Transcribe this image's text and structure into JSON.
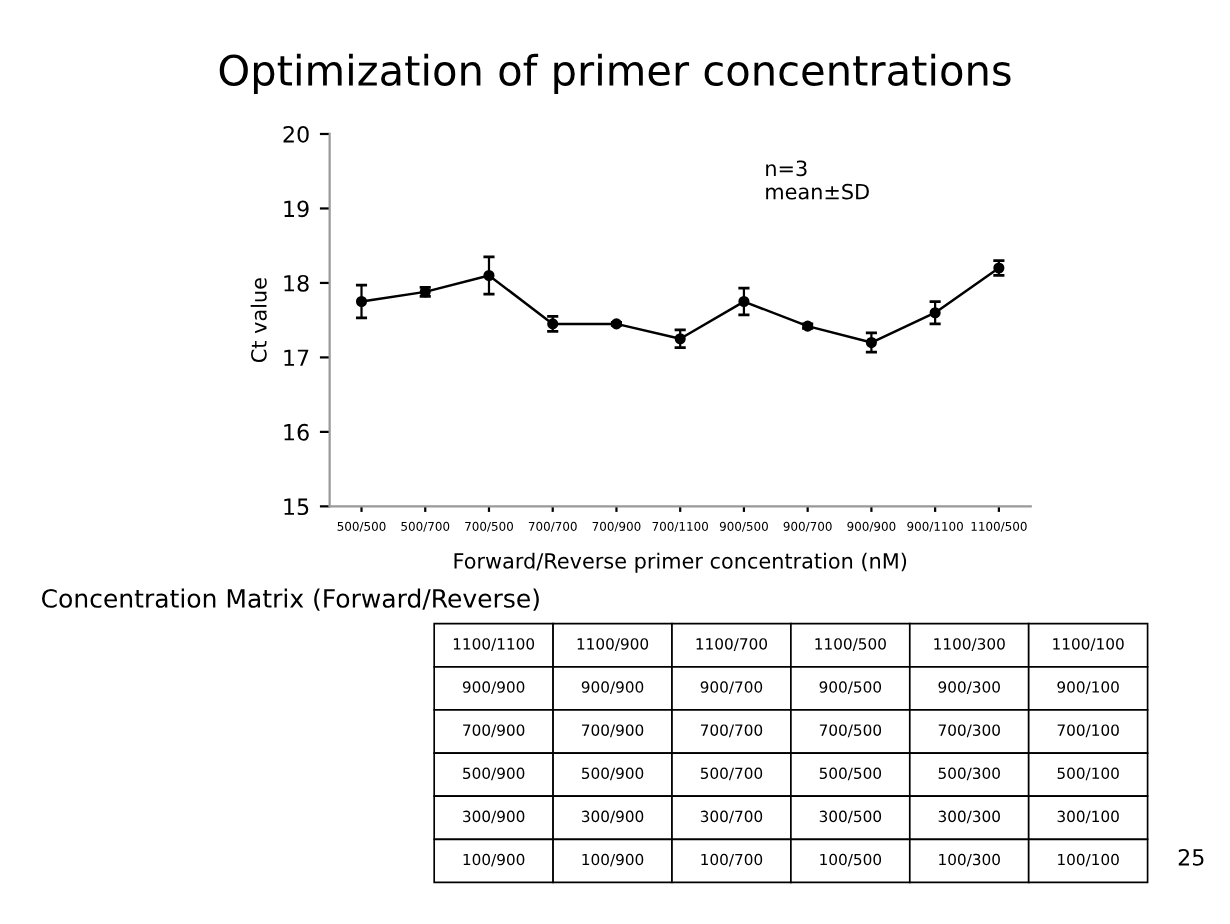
{
  "chart_data": {
    "type": "line",
    "title": "Optimization of primer concentrations",
    "xlabel": "Forward/Reverse primer concentration (nM)",
    "ylabel": "Ct value",
    "categories": [
      "500/500",
      "500/700",
      "700/500",
      "700/700",
      "700/900",
      "700/1100",
      "900/500",
      "900/700",
      "900/900",
      "900/1100",
      "1100/500"
    ],
    "series": [
      {
        "color": "#000000",
        "values": [
          17.75,
          17.88,
          18.1,
          17.45,
          17.45,
          17.25,
          17.75,
          17.42,
          17.2,
          17.6,
          18.2
        ],
        "errors": [
          0.22,
          0.06,
          0.25,
          0.1,
          0.02,
          0.12,
          0.18,
          0.03,
          0.13,
          0.15,
          0.1
        ]
      }
    ],
    "ylim": [
      15,
      20
    ],
    "yticks": [
      15,
      16,
      17,
      18,
      19,
      20
    ],
    "grid": false,
    "marker": "circle",
    "line_style": "solid",
    "annotations": [
      "n=3\nmean±SD",
      "Concentration Matrix (Forward/Reverse)",
      "1100/1100",
      "1100/900",
      "1100/700",
      "1100/500",
      "1100/300",
      "1100/100",
      "900/900",
      "900/900",
      "900/700",
      "900/500",
      "900/300",
      "900/100",
      "700/900",
      "700/900",
      "700/700",
      "700/500",
      "700/300",
      "700/100",
      "500/900",
      "500/900",
      "500/700",
      "500/500",
      "500/300",
      "500/100",
      "300/900",
      "300/900",
      "300/700",
      "300/500",
      "300/300",
      "300/100",
      "100/900",
      "100/900",
      "100/700",
      "100/500",
      "100/300",
      "100/100",
      "25"
    ]
  }
}
